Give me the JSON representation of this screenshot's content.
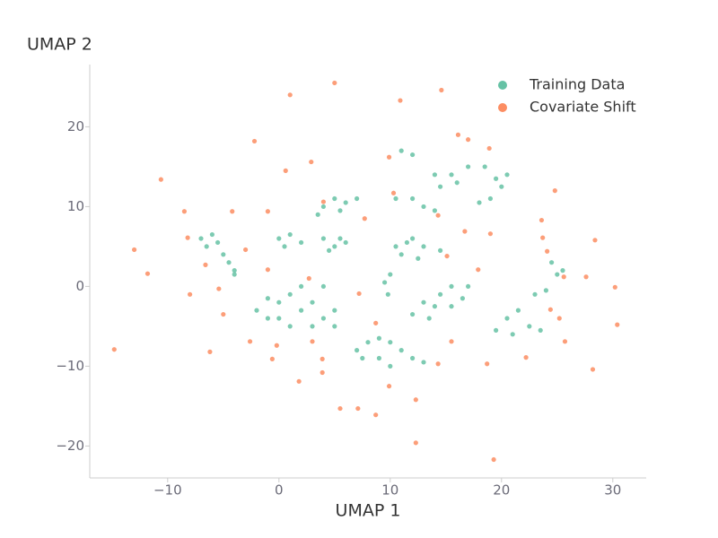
{
  "chart_data": {
    "type": "scatter",
    "x_label": "UMAP 1",
    "y_label": "UMAP 2",
    "xlim": [
      -17,
      33
    ],
    "ylim": [
      -24,
      27.8
    ],
    "xticks": [
      {
        "value": -10,
        "label": "−10"
      },
      0,
      10,
      20,
      30
    ],
    "yticks": [
      {
        "value": -20,
        "label": "−20"
      },
      {
        "value": -10,
        "label": "−10"
      },
      0,
      10,
      20
    ],
    "grid": false,
    "legend": "upper right",
    "series": [
      {
        "name": "Training Data",
        "color": "#66c2a5",
        "x": [
          -7,
          -6,
          -5.5,
          -6.5,
          -4.5,
          -4,
          -5,
          -4,
          0,
          1,
          2,
          0.5,
          4,
          5,
          5.5,
          4.5,
          6,
          4,
          5,
          6,
          7,
          5.5,
          3.5,
          -2,
          -1,
          0,
          1,
          2,
          3,
          4,
          1,
          0,
          3,
          5,
          2,
          4,
          -1,
          5,
          7,
          8,
          9,
          10,
          11,
          12,
          13,
          9,
          10,
          7.5,
          10.5,
          11,
          12,
          13,
          12.5,
          14.5,
          11.5,
          9.5,
          10,
          9.8,
          12,
          13.5,
          14,
          13,
          14.5,
          15.5,
          16.5,
          17,
          15.5,
          10.5,
          12,
          13,
          14,
          15.5,
          14,
          17,
          16,
          14.5,
          18.5,
          19.5,
          20.5,
          20,
          19,
          18,
          11,
          12,
          19.5,
          20.5,
          21.5,
          22.5,
          21,
          23.5,
          23,
          24,
          24.5,
          25.5,
          25
        ],
        "y": [
          6,
          6.5,
          5.5,
          5,
          3,
          2,
          4,
          1.5,
          6,
          6.5,
          5.5,
          5,
          6,
          5,
          6,
          4.5,
          5.5,
          10,
          11,
          10.5,
          11,
          9.5,
          9,
          -3,
          -1.5,
          -2,
          -1,
          -3,
          -2,
          -4,
          -5,
          -4,
          -5,
          -3,
          0,
          0,
          -4,
          -5,
          -8,
          -7,
          -6.5,
          -7,
          -8,
          -9,
          -9.5,
          -9,
          -10,
          -9,
          5,
          4,
          6,
          5,
          3.5,
          4.5,
          5.5,
          0.5,
          1.5,
          -1,
          -3.5,
          -4,
          -2.5,
          -2,
          -1,
          0,
          -1.5,
          0,
          -2.5,
          11,
          11,
          10,
          9.5,
          14,
          14,
          15,
          13,
          12.5,
          15,
          13.5,
          14,
          12.5,
          11,
          10.5,
          17,
          16.5,
          -5.5,
          -4,
          -3,
          -5,
          -6,
          -5.5,
          -1,
          -0.5,
          3,
          2,
          1.5
        ]
      },
      {
        "name": "Covariate Shift",
        "color": "#fc8d62",
        "x": [
          -14.8,
          -13,
          -10.6,
          -11.8,
          -8.5,
          -8,
          -5.4,
          -4.2,
          -3,
          -2.2,
          -1,
          -0.6,
          -0.2,
          1,
          5,
          2.9,
          1.8,
          3,
          3.9,
          2.7,
          7.2,
          8.7,
          5.5,
          7.1,
          9.9,
          12.3,
          12.3,
          9.9,
          10.3,
          10.9,
          14.6,
          14.3,
          16.7,
          15.1,
          17.9,
          18.9,
          17,
          16.1,
          18.7,
          19.3,
          22.2,
          23.7,
          24.1,
          25.6,
          24.4,
          25.2,
          25.7,
          27.6,
          30.2,
          30.4,
          28.2,
          28.4,
          24.8,
          23.6,
          19,
          4,
          7.7,
          -1,
          -6.2,
          -5,
          -2.6,
          0.6,
          3.9,
          8.7,
          15.5,
          14.3,
          -8.2,
          -6.6
        ],
        "y": [
          -7.9,
          4.6,
          13.4,
          1.6,
          9.4,
          -1,
          -0.3,
          9.4,
          4.6,
          18.2,
          9.4,
          -9.1,
          -7.4,
          24,
          25.5,
          15.6,
          -11.9,
          -6.9,
          -9.1,
          1,
          -0.9,
          -4.6,
          -15.3,
          -15.3,
          -12.5,
          -14.2,
          -19.6,
          16.2,
          11.7,
          23.3,
          24.6,
          8.9,
          6.9,
          3.8,
          2.1,
          17.3,
          18.4,
          19,
          -9.7,
          -21.7,
          -8.9,
          6.1,
          4.4,
          1.2,
          -2.9,
          -4,
          -6.9,
          1.2,
          -0.1,
          -4.8,
          -10.4,
          5.8,
          12,
          8.3,
          6.6,
          10.6,
          8.5,
          2.1,
          -8.2,
          -3.5,
          -6.9,
          14.5,
          -10.8,
          -16.1,
          -6.9,
          -9.7,
          6.1,
          2.7
        ]
      }
    ]
  }
}
